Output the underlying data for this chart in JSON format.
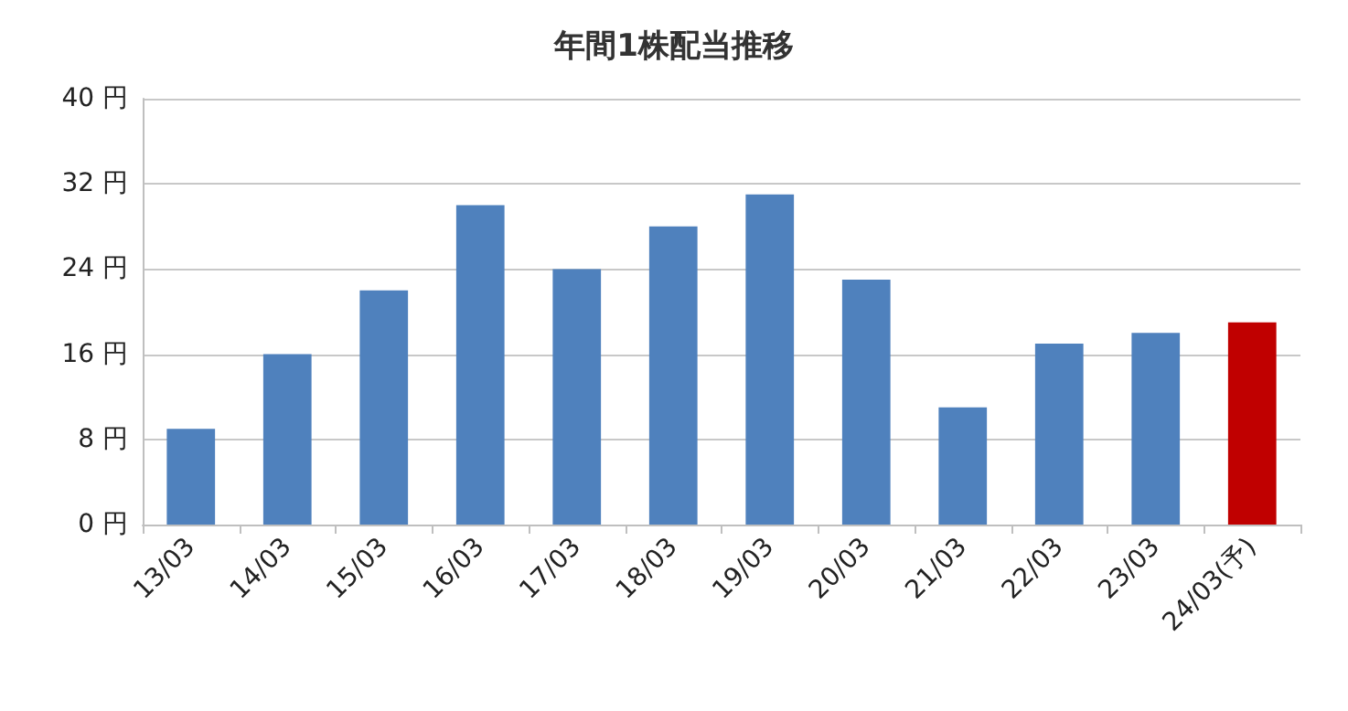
{
  "chart_data": {
    "type": "bar",
    "title": "年間1株配当推移",
    "categories": [
      "13/03",
      "14/03",
      "15/03",
      "16/03",
      "17/03",
      "18/03",
      "19/03",
      "20/03",
      "21/03",
      "22/03",
      "23/03",
      "24/03(予)"
    ],
    "values": [
      9,
      16,
      22,
      30,
      24,
      28,
      31,
      23,
      11,
      17,
      18,
      19
    ],
    "colors": [
      "#4f81bd",
      "#4f81bd",
      "#4f81bd",
      "#4f81bd",
      "#4f81bd",
      "#4f81bd",
      "#4f81bd",
      "#4f81bd",
      "#4f81bd",
      "#4f81bd",
      "#4f81bd",
      "#c00000"
    ],
    "ylim": [
      0,
      40
    ],
    "yticks": [
      {
        "value": 0,
        "label": "0 円"
      },
      {
        "value": 8,
        "label": "8 円"
      },
      {
        "value": 16,
        "label": "16 円"
      },
      {
        "value": 24,
        "label": "24 円"
      },
      {
        "value": 32,
        "label": "32 円"
      },
      {
        "value": 40,
        "label": "40 円"
      }
    ],
    "grid": "y"
  }
}
